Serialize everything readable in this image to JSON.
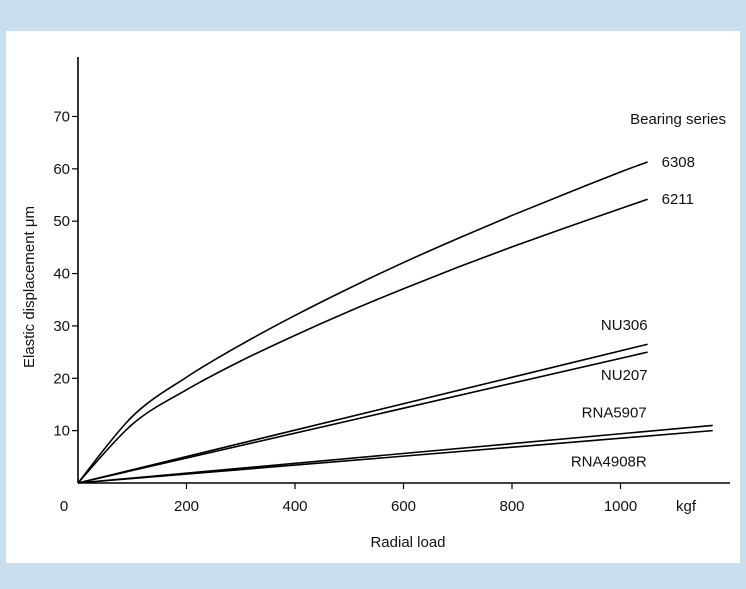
{
  "chart_data": {
    "type": "line",
    "title": "",
    "xlabel": "Radial load",
    "ylabel": "Elastic displacement μm",
    "x_unit": "kgf",
    "xlim": [
      0,
      1200
    ],
    "ylim": [
      0,
      75
    ],
    "x_ticks": [
      0,
      200,
      400,
      600,
      800,
      1000
    ],
    "y_ticks": [
      10,
      20,
      30,
      40,
      50,
      60,
      70
    ],
    "legend_title": "Bearing series",
    "grid": false,
    "series": [
      {
        "name": "6308",
        "x": [
          0,
          100,
          200,
          300,
          400,
          500,
          600,
          700,
          800,
          900,
          1000,
          1050
        ],
        "y": [
          0,
          12.7,
          20.2,
          26.4,
          32,
          37.2,
          42.1,
          46.7,
          51.1,
          55.3,
          59.4,
          61.3
        ]
      },
      {
        "name": "6211",
        "x": [
          0,
          100,
          200,
          300,
          400,
          500,
          600,
          700,
          800,
          900,
          1000,
          1050
        ],
        "y": [
          0,
          11.2,
          17.8,
          23.3,
          28.2,
          32.8,
          37.1,
          41.2,
          45.1,
          48.8,
          52.4,
          54.2
        ]
      },
      {
        "name": "NU306",
        "x": [
          0,
          1050
        ],
        "y": [
          0,
          26.5
        ]
      },
      {
        "name": "NU207",
        "x": [
          0,
          1050
        ],
        "y": [
          0,
          25
        ]
      },
      {
        "name": "RNA5907",
        "x": [
          0,
          1170
        ],
        "y": [
          0,
          11
        ]
      },
      {
        "name": "RNA4908R",
        "x": [
          0,
          1170
        ],
        "y": [
          0,
          10
        ]
      }
    ]
  }
}
